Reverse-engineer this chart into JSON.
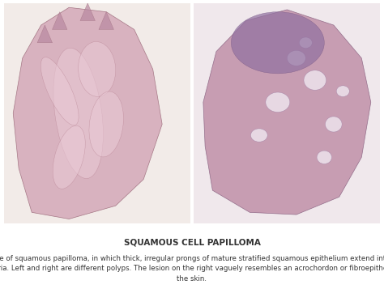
{
  "title": "SQUAMOUS CELL PAPILLOMA",
  "title_fontsize": 7.5,
  "title_fontweight": "bold",
  "title_color": "#333333",
  "body_text": "A second type of squamous papilloma, in which thick, irregular prongs of mature stratified squamous epithelium extend into the core of\nlamina propria. Left and right are different polyps. The lesion on the right vaguely resembles an acrochordon or fibroepithelial polyp of\nthe skin.",
  "body_fontsize": 6.2,
  "body_color": "#333333",
  "bg_color": "#ffffff",
  "image_area_color": "#e8d8dc",
  "left_image_bg": "#f5f0f2",
  "right_image_bg": "#ede5e8",
  "divider_color": "#cccccc",
  "fig_width": 4.74,
  "fig_height": 3.78
}
